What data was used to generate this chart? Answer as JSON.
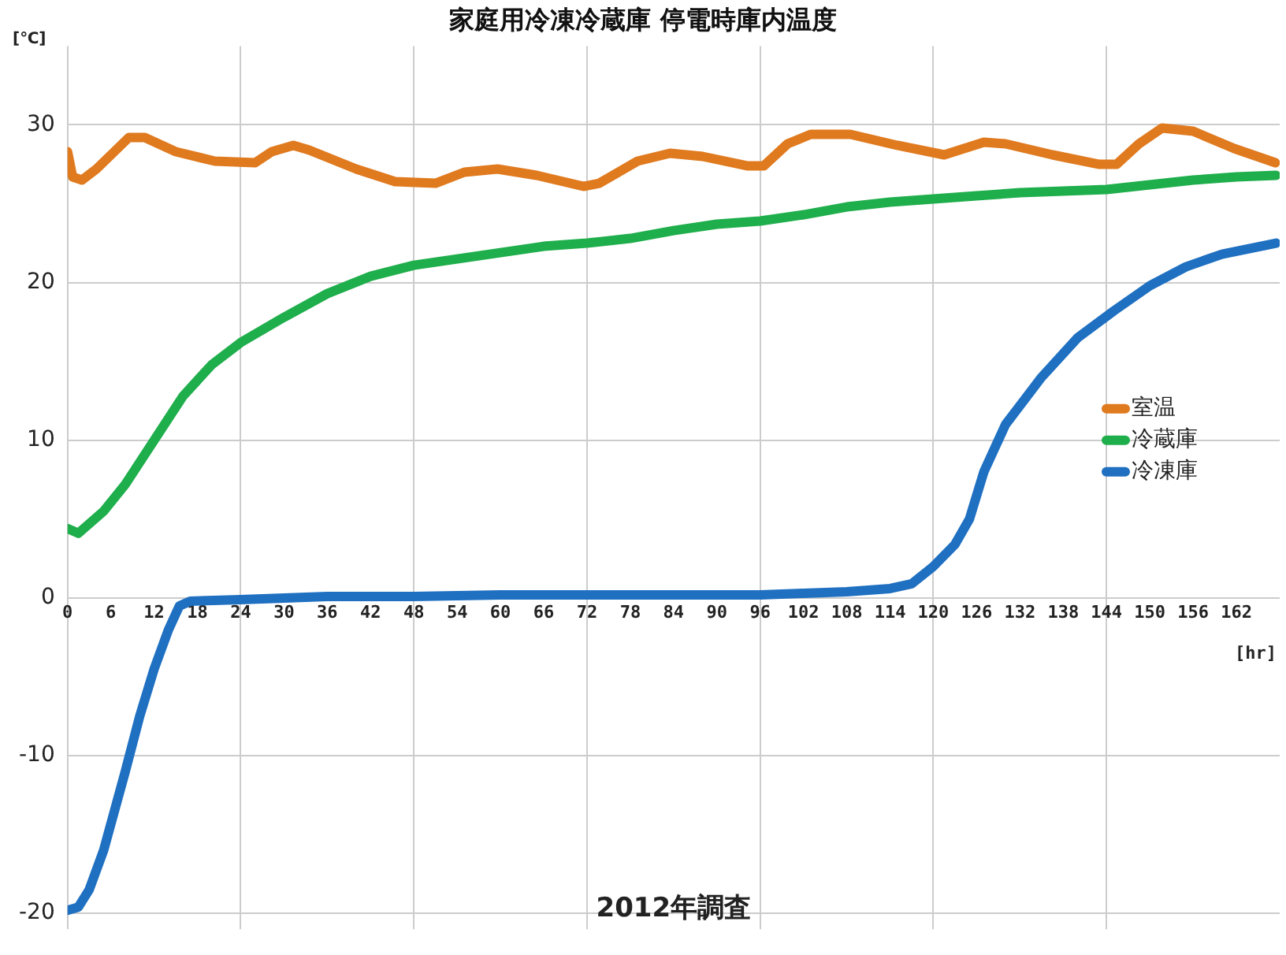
{
  "chart_data": {
    "type": "line",
    "title": "家庭用冷凍冷蔵庫 停電時庫内温度",
    "xlabel": "[hr]",
    "ylabel": "[℃]",
    "annotations": [
      "2012年調査"
    ],
    "xlim": [
      0,
      168
    ],
    "xticks": [
      0,
      6,
      12,
      18,
      24,
      30,
      36,
      42,
      48,
      54,
      60,
      66,
      72,
      78,
      84,
      90,
      96,
      102,
      108,
      114,
      120,
      126,
      132,
      138,
      144,
      150,
      156,
      162
    ],
    "ylim": [
      -21,
      35
    ],
    "yticks": [
      -20,
      -10,
      0,
      10,
      20,
      30
    ],
    "grid": true,
    "legend": "right",
    "marker": "none",
    "line_style": "solid",
    "series": [
      {
        "name": "室温",
        "color": "#e07a1f",
        "x": [
          0,
          0.7,
          2,
          4,
          8.5,
          10.7,
          15,
          20.4,
          26,
          28.3,
          31.3,
          33.5,
          40,
          45.4,
          51,
          55,
          59.6,
          65,
          71.5,
          73.7,
          79,
          83.5,
          88,
          94.3,
          96.5,
          99.8,
          103,
          108.5,
          115,
          121.5,
          127,
          130,
          136.5,
          143,
          145.4,
          148.5,
          151.7,
          156,
          161.7,
          167.4
        ],
        "values": [
          28.3,
          26.7,
          26.5,
          27.2,
          29.2,
          29.2,
          28.3,
          27.7,
          27.6,
          28.3,
          28.7,
          28.4,
          27.2,
          26.4,
          26.3,
          27,
          27.2,
          26.8,
          26.1,
          26.3,
          27.7,
          28.2,
          28,
          27.4,
          27.4,
          28.8,
          29.4,
          29.4,
          28.7,
          28.1,
          28.9,
          28.8,
          28.1,
          27.5,
          27.5,
          28.8,
          29.8,
          29.6,
          28.5,
          27.6
        ]
      },
      {
        "name": "冷蔵庫",
        "color": "#1fae4c",
        "x": [
          0,
          1.5,
          5,
          8,
          12,
          16,
          20,
          24,
          30,
          36,
          42,
          48,
          54,
          60,
          66,
          72,
          78,
          84,
          90,
          96,
          102,
          108,
          114,
          120,
          126,
          132,
          138,
          144,
          150,
          156,
          162,
          167.5
        ],
        "values": [
          4.4,
          4.1,
          5.5,
          7.2,
          10,
          12.8,
          14.8,
          16.2,
          17.8,
          19.3,
          20.4,
          21.1,
          21.5,
          21.9,
          22.3,
          22.5,
          22.8,
          23.3,
          23.7,
          23.9,
          24.3,
          24.8,
          25.1,
          25.3,
          25.5,
          25.7,
          25.8,
          25.9,
          26.2,
          26.5,
          26.7,
          26.8
        ]
      },
      {
        "name": "冷凍庫",
        "color": "#1f70c1",
        "x": [
          0,
          1.5,
          3,
          5,
          8,
          10,
          12,
          14,
          15.5,
          17,
          24,
          30,
          36,
          48,
          60,
          72,
          84,
          96,
          102,
          108,
          114,
          117,
          120,
          123,
          125,
          127,
          130,
          135,
          140,
          145,
          150,
          155,
          160,
          167.5
        ],
        "values": [
          -19.8,
          -19.6,
          -18.5,
          -16,
          -11,
          -7.5,
          -4.5,
          -2,
          -0.5,
          -0.2,
          -0.1,
          0,
          0.1,
          0.1,
          0.2,
          0.2,
          0.2,
          0.2,
          0.3,
          0.4,
          0.6,
          0.9,
          2,
          3.4,
          5,
          8,
          11,
          14,
          16.5,
          18.2,
          19.8,
          21,
          21.8,
          22.5
        ]
      }
    ]
  }
}
